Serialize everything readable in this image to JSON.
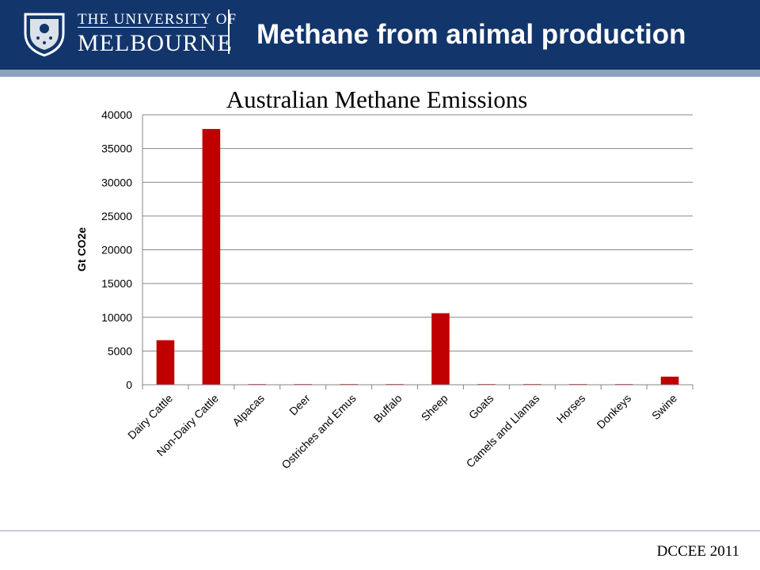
{
  "header": {
    "university_line1": "THE UNIVERSITY OF",
    "university_line2": "MELBOURNE",
    "slide_title": "Methane from animal production",
    "colors": {
      "header_bg": "#12356b",
      "stripe": "#8ea2bd"
    }
  },
  "footer": {
    "source": "DCCEE 2011"
  },
  "chart_data": {
    "type": "bar",
    "title": "Australian Methane Emissions",
    "xlabel": "",
    "ylabel": "Gt CO2e",
    "categories": [
      "Dairy Cattle",
      "Non-Dairy Cattle",
      "Alpacas",
      "Deer",
      "Ostriches and Emus",
      "Buffalo",
      "Sheep",
      "Goats",
      "Camels and Llamas",
      "Horses",
      "Donkeys",
      "Swine"
    ],
    "values": [
      6600,
      37900,
      100,
      100,
      100,
      100,
      10600,
      100,
      100,
      100,
      100,
      1200
    ],
    "ylim": [
      0,
      40000
    ],
    "yticks": [
      0,
      5000,
      10000,
      15000,
      20000,
      25000,
      30000,
      35000,
      40000
    ],
    "grid": true,
    "bar_color": "#c00000"
  }
}
